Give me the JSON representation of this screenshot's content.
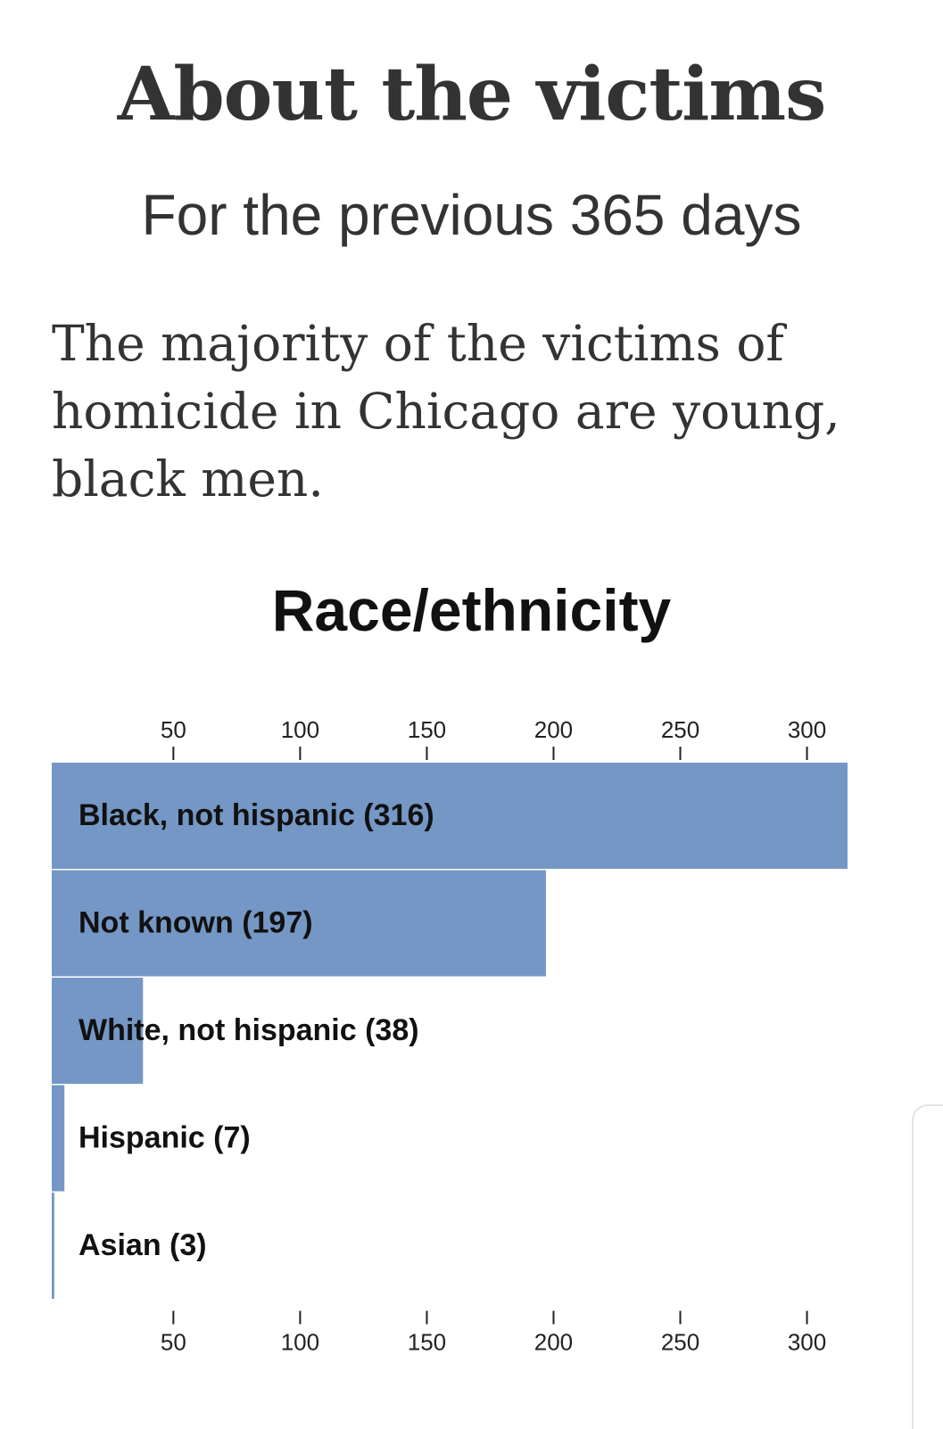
{
  "header": {
    "title": "About the victims",
    "subtitle": "For the previous 365 days",
    "intro": "The majority of the victims of homicide in Chicago are young, black men."
  },
  "chart_data": {
    "type": "bar",
    "orientation": "horizontal",
    "title": "Race/ethnicity",
    "xlabel": "",
    "ylabel": "",
    "categories": [
      "Black, not hispanic",
      "Not known",
      "White, not hispanic",
      "Hispanic",
      "Asian"
    ],
    "values": [
      316,
      197,
      38,
      7,
      3
    ],
    "labels": [
      "Black, not hispanic (316)",
      "Not known (197)",
      "White, not hispanic (38)",
      "Hispanic (7)",
      "Asian (3)"
    ],
    "ticks": [
      50,
      100,
      150,
      200,
      250,
      300
    ],
    "xlim": [
      2,
      316
    ],
    "axis_positions": [
      "top",
      "bottom"
    ],
    "grid": false,
    "legend": "none",
    "bar_color": "#7597c5"
  }
}
